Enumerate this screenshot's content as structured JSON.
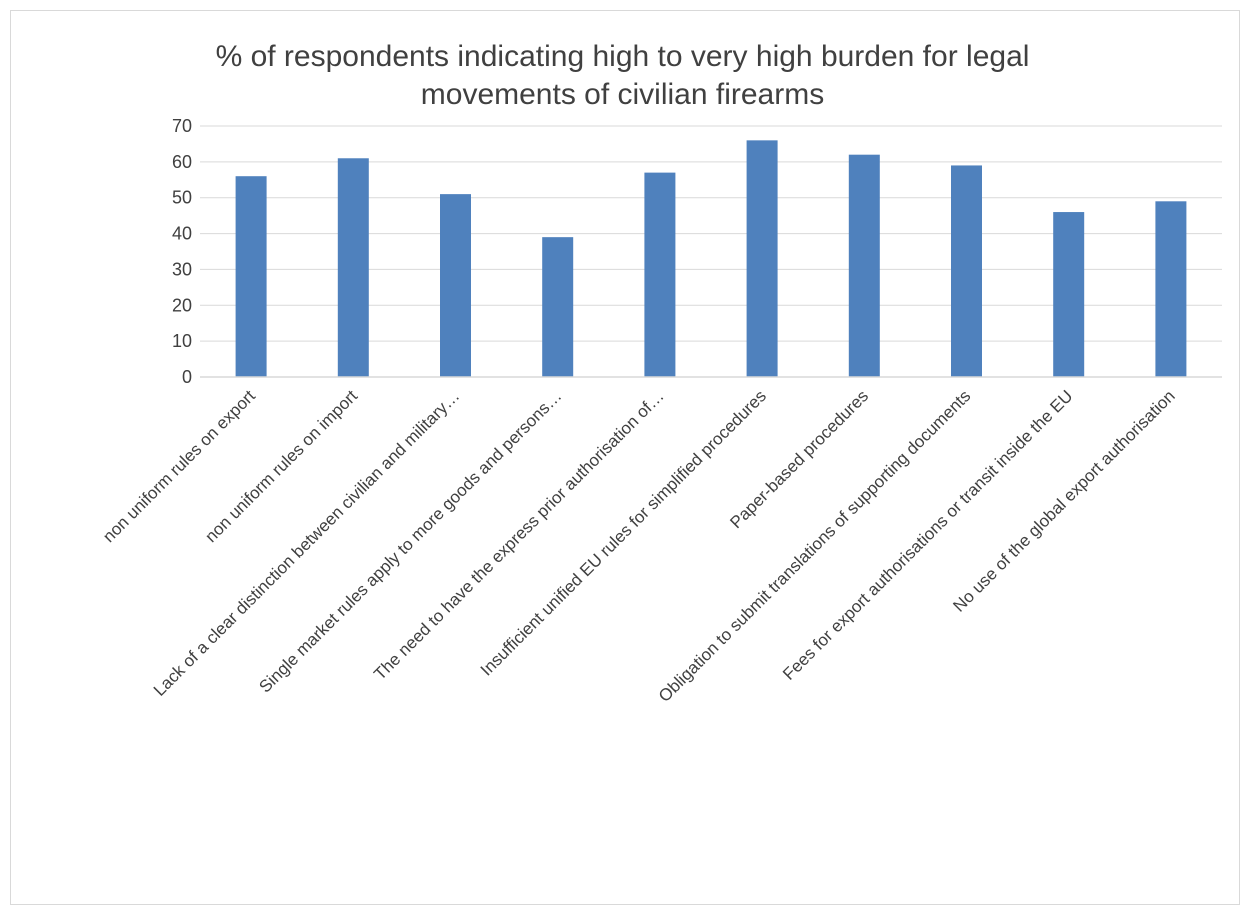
{
  "chart_data": {
    "type": "bar",
    "title_lines": [
      "% of respondents indicating high to very high burden for legal",
      "movements of civilian firearms"
    ],
    "categories": [
      "non uniform rules on export",
      "non uniform rules on import",
      "Lack of a clear distinction between civilian and military…",
      "Single market rules apply to more goods and persons…",
      "The need to have the express prior authorisation of…",
      "Insufficient unified EU rules for simplified procedures",
      "Paper-based procedures",
      "Obligation to submit translations of supporting documents",
      "Fees for export authorisations or transit inside the EU",
      "No use of the global export authorisation"
    ],
    "values": [
      56,
      61,
      51,
      39,
      57,
      66,
      62,
      59,
      46,
      49
    ],
    "yticks": [
      "0",
      "10",
      "20",
      "30",
      "40",
      "50",
      "60",
      "70"
    ],
    "ylim": [
      0,
      70
    ],
    "grid": true,
    "legend": "none",
    "bar_color": "#4f81bd",
    "grid_color": "#d9d9d9"
  }
}
